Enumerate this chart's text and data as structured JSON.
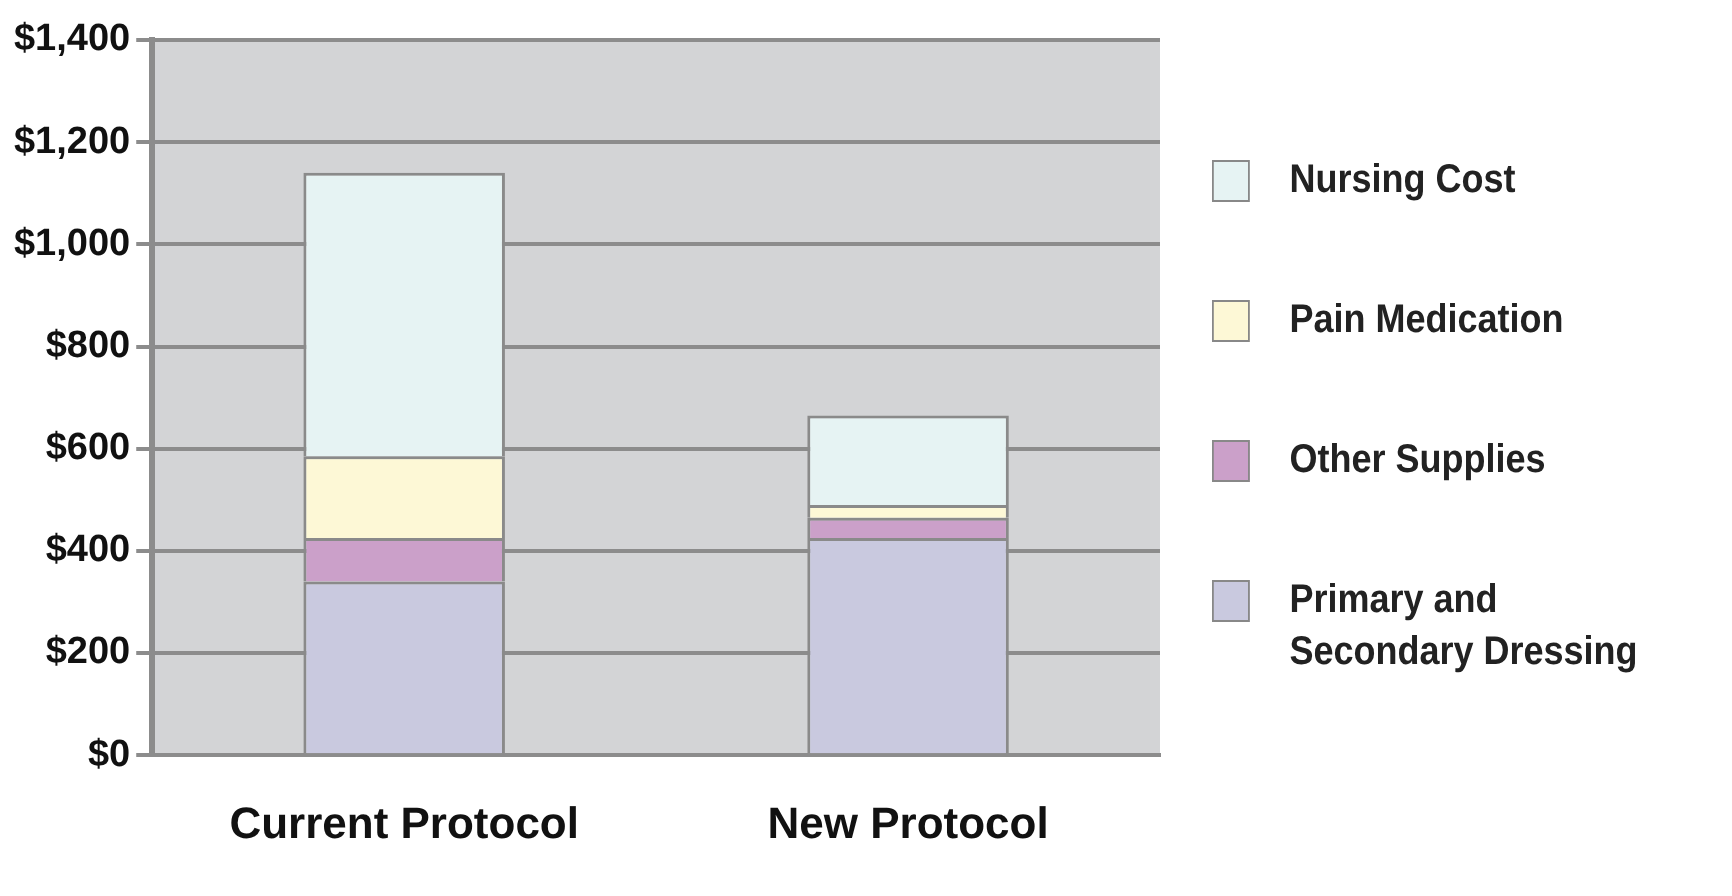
{
  "chart_data": {
    "type": "bar",
    "stacked": true,
    "categories": [
      "Current Protocol",
      "New Protocol"
    ],
    "series": [
      {
        "name": "Primary and Secondary Dressing",
        "color": "#c9c9df",
        "values": [
          340,
          425
        ]
      },
      {
        "name": "Other Supplies",
        "color": "#cba0c9",
        "values": [
          85,
          40
        ]
      },
      {
        "name": "Pain Medication",
        "color": "#fdf8d6",
        "values": [
          160,
          25
        ]
      },
      {
        "name": "Nursing Cost",
        "color": "#e6f3f3",
        "values": [
          555,
          175
        ]
      }
    ],
    "ylim": [
      0,
      1400
    ],
    "yticks": [
      {
        "value": 0,
        "label": "$0"
      },
      {
        "value": 200,
        "label": "$200"
      },
      {
        "value": 400,
        "label": "$400"
      },
      {
        "value": 600,
        "label": "$600"
      },
      {
        "value": 800,
        "label": "$800"
      },
      {
        "value": 1000,
        "label": "$1,000"
      },
      {
        "value": 1200,
        "label": "$1,200"
      },
      {
        "value": 1400,
        "label": "$1,400"
      }
    ],
    "grid": "y",
    "legend": "right"
  }
}
